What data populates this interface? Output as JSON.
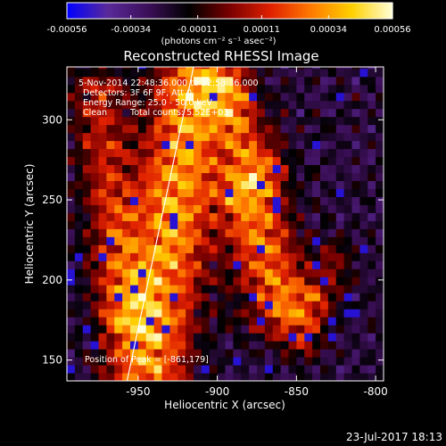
{
  "chart_data": {
    "type": "heatmap",
    "title": "Reconstructed RHESSI Image",
    "xlabel": "Heliocentric X (arcsec)",
    "ylabel": "Heliocentric Y (arcsec)",
    "xlim": [
      -995,
      -795
    ],
    "ylim": [
      137,
      333
    ],
    "x_ticks": [
      -950,
      -900,
      -850,
      -800
    ],
    "y_ticks": [
      150,
      200,
      250,
      300
    ],
    "x_tick_labels": [
      "-950",
      "-900",
      "-850",
      "-800"
    ],
    "y_tick_labels": [
      "150",
      "200",
      "250",
      "300"
    ],
    "colorbar": {
      "ticks": [
        -0.00056,
        -0.00034,
        -0.00011,
        0.00011,
        0.00034,
        0.00056
      ],
      "tick_labels": [
        "-0.00056",
        "-0.00034",
        "-0.00011",
        "0.00011",
        "0.00034",
        "0.00056"
      ],
      "range": [
        -0.00056,
        0.00056
      ],
      "units_label": "(photons cm⁻² s⁻¹ asec⁻²)",
      "colormap": [
        "#0000ff",
        "#5a2a9a",
        "#3c0f58",
        "#000000",
        "#7a0000",
        "#e02000",
        "#ff7a00",
        "#ffd000",
        "#ffffd8"
      ]
    },
    "annotations": {
      "time_range": "5-Nov-2014 22:48:36.000 to 22:58:36.000",
      "detectors": "Detectors: 3F 6F 9F, Att 0",
      "energy": "Energy Range: 25.0 - 50.0 keV",
      "method": "Clean",
      "counts": "Total counts: 5.52E+03",
      "peak": "Position of Peak = [-861,179]"
    },
    "limb_line": {
      "x": [
        -957,
        -915
      ],
      "y": [
        137,
        333
      ]
    },
    "hot_bands": [
      {
        "x1": -945,
        "y1": 145,
        "x2": -915,
        "y2": 320,
        "width": 18,
        "amp": 0.00052
      },
      {
        "x1": -960,
        "y1": 180,
        "x2": -975,
        "y2": 315,
        "width": 12,
        "amp": 0.0003
      },
      {
        "x1": -860,
        "y1": 185,
        "x2": -880,
        "y2": 250,
        "width": 15,
        "amp": 0.00045
      },
      {
        "x1": -895,
        "y1": 320,
        "x2": -875,
        "y2": 270,
        "width": 12,
        "amp": 0.00035
      },
      {
        "x1": -845,
        "y1": 165,
        "x2": -828,
        "y2": 210,
        "width": 10,
        "amp": 0.0002
      }
    ]
  },
  "footer": {
    "timestamp": "23-Jul-2017 18:13"
  }
}
